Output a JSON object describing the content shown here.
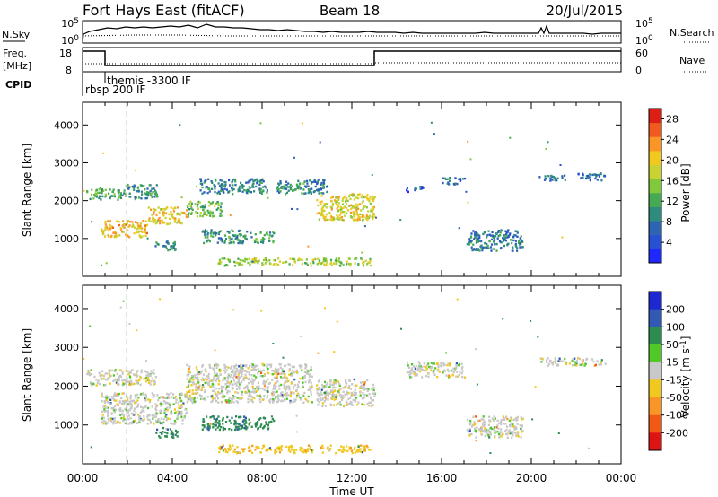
{
  "header": {
    "radar_title": "Fort Hays East (fitACF)",
    "beam_label": "Beam 18",
    "date_label": "20/Jul/2015"
  },
  "top_panel": {
    "left_label": "N.Sky",
    "right_label": "N.Search",
    "left_ticks": [
      "10^5",
      "10^0"
    ],
    "right_ticks": [
      "10^5",
      "10^0"
    ]
  },
  "freq_panel": {
    "left_label_line1": "Freq.",
    "left_label_line2": "[MHz]",
    "right_label": "Nave",
    "left_ticks": [
      "18",
      "8"
    ],
    "right_ticks": [
      "60",
      "0"
    ],
    "cpid_label": "CPID",
    "cpid_entries": [
      "rbsp 200 IF",
      "themis -3300 IF"
    ]
  },
  "x_axis": {
    "label": "Time UT",
    "ticks": [
      "00:00",
      "04:00",
      "08:00",
      "12:00",
      "16:00",
      "20:00",
      "00:00"
    ]
  },
  "colors": {
    "echo_grey": "#c8c8c8",
    "trace": "#000000",
    "dashed_marker": "#c8c8c8"
  },
  "chart_data": [
    {
      "type": "heatmap",
      "title": "",
      "xlabel": "Time UT",
      "ylabel": "Slant Range [km]",
      "xlim": [
        0,
        24
      ],
      "ylim": [
        0,
        4600
      ],
      "yticks": [
        "1000",
        "2000",
        "3000",
        "4000"
      ],
      "colorbar": {
        "label": "Power [dB]",
        "ticks": [
          "4",
          "8",
          "12",
          "16",
          "20",
          "24",
          "28"
        ],
        "range": [
          0,
          30
        ],
        "colors": [
          "#1e28ff",
          "#2850d2",
          "#2d64b4",
          "#2e8c7d",
          "#46aa55",
          "#82c83c",
          "#c8d232",
          "#f0c81e",
          "#fa9628",
          "#f05a1e",
          "#dc1e14"
        ]
      },
      "echo_regions": [
        {
          "time": [
            0.15,
            1.9
          ],
          "range": [
            2050,
            2350
          ],
          "power": 12
        },
        {
          "time": [
            1.9,
            3.3
          ],
          "range": [
            2050,
            2450
          ],
          "power": 10
        },
        {
          "time": [
            5.2,
            8.2
          ],
          "range": [
            2200,
            2600
          ],
          "power": 9
        },
        {
          "time": [
            8.6,
            10.2
          ],
          "range": [
            2200,
            2550
          ],
          "power": 10
        },
        {
          "time": [
            0.8,
            2.9
          ],
          "range": [
            1050,
            1500
          ],
          "power": 21
        },
        {
          "time": [
            2.9,
            4.6
          ],
          "range": [
            1400,
            1850
          ],
          "power": 20
        },
        {
          "time": [
            4.6,
            6.2
          ],
          "range": [
            1600,
            2000
          ],
          "power": 14
        },
        {
          "time": [
            3.2,
            4.2
          ],
          "range": [
            700,
            950
          ],
          "power": 9
        },
        {
          "time": [
            5.3,
            7.5
          ],
          "range": [
            900,
            1250
          ],
          "power": 10
        },
        {
          "time": [
            7.6,
            8.5
          ],
          "range": [
            900,
            1200
          ],
          "power": 12
        },
        {
          "time": [
            10.4,
            13.0
          ],
          "range": [
            1500,
            2200
          ],
          "power": 19
        },
        {
          "time": [
            10.0,
            10.9
          ],
          "range": [
            2200,
            2600
          ],
          "power": 8
        },
        {
          "time": [
            14.4,
            15.2
          ],
          "range": [
            2250,
            2400
          ],
          "power": 6
        },
        {
          "time": [
            16.0,
            17.0
          ],
          "range": [
            2450,
            2650
          ],
          "power": 6
        },
        {
          "time": [
            17.1,
            19.6
          ],
          "range": [
            700,
            1250
          ],
          "power": 8
        },
        {
          "time": [
            20.3,
            21.5
          ],
          "range": [
            2550,
            2700
          ],
          "power": 7
        },
        {
          "time": [
            22.0,
            23.3
          ],
          "range": [
            2550,
            2750
          ],
          "power": 7
        },
        {
          "time": [
            6.0,
            12.8
          ],
          "range": [
            300,
            500
          ],
          "power": 16
        }
      ]
    },
    {
      "type": "heatmap",
      "title": "",
      "xlabel": "Time UT",
      "ylabel": "Slant Range [km]",
      "xlim": [
        0,
        24
      ],
      "ylim": [
        0,
        4600
      ],
      "yticks": [
        "1000",
        "2000",
        "3000",
        "4000"
      ],
      "colorbar": {
        "label": "Velocity [m s^-1]",
        "ticks": [
          "200",
          "100",
          "50",
          "15",
          "-15",
          "-50",
          "-100",
          "-200"
        ],
        "colors": [
          "#1e28d2",
          "#325ab4",
          "#2d8c50",
          "#50c828",
          "#c8c8c8",
          "#f0c81e",
          "#fa9628",
          "#f05a14",
          "#dc1414"
        ]
      },
      "echo_regions": [
        {
          "time": [
            0.15,
            3.3
          ],
          "range": [
            2050,
            2450
          ],
          "velocity": 0
        },
        {
          "time": [
            0.8,
            4.6
          ],
          "range": [
            1050,
            1850
          ],
          "velocity": 0
        },
        {
          "time": [
            4.6,
            10.2
          ],
          "range": [
            1600,
            2600
          ],
          "velocity": 0
        },
        {
          "time": [
            3.2,
            4.2
          ],
          "range": [
            700,
            950
          ],
          "velocity": 60
        },
        {
          "time": [
            5.3,
            8.5
          ],
          "range": [
            900,
            1250
          ],
          "velocity": 60
        },
        {
          "time": [
            10.4,
            13.0
          ],
          "range": [
            1500,
            2200
          ],
          "velocity": 0
        },
        {
          "time": [
            14.4,
            17.0
          ],
          "range": [
            2250,
            2650
          ],
          "velocity": 0
        },
        {
          "time": [
            17.1,
            19.6
          ],
          "range": [
            700,
            1250
          ],
          "velocity": 0
        },
        {
          "time": [
            20.3,
            23.3
          ],
          "range": [
            2550,
            2750
          ],
          "velocity": 0
        },
        {
          "time": [
            6.0,
            12.8
          ],
          "range": [
            300,
            500
          ],
          "velocity": -40
        }
      ]
    }
  ]
}
